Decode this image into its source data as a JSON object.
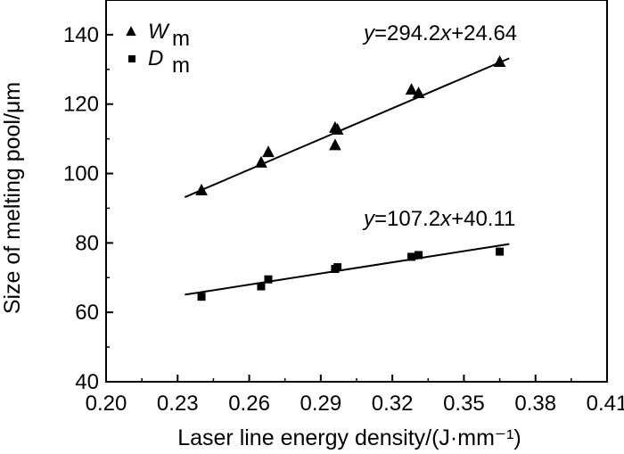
{
  "chart_data": {
    "type": "scatter",
    "xlabel": "Laser line energy density/(J·mm⁻¹)",
    "ylabel": "Size of melting pool/μm",
    "xlim": [
      0.2,
      0.41
    ],
    "ylim": [
      40,
      150
    ],
    "x_ticks": [
      "0.20",
      "0.23",
      "0.26",
      "0.29",
      "0.32",
      "0.35",
      "0.38",
      "0.41"
    ],
    "y_ticks": [
      "40",
      "60",
      "80",
      "100",
      "120",
      "140"
    ],
    "grid": false,
    "legend_position": "top-left",
    "series": [
      {
        "name": "W_m",
        "legend_main": "W",
        "legend_sub": "m",
        "marker": "triangle",
        "color": "#000000",
        "x": [
          0.24,
          0.265,
          0.268,
          0.296,
          0.296,
          0.297,
          0.328,
          0.331,
          0.365
        ],
        "y": [
          95,
          103,
          106,
          113,
          108,
          112.5,
          124,
          123,
          132
        ],
        "fit": {
          "slope": 294.2,
          "intercept": 24.64,
          "x_range": [
            0.233,
            0.369
          ],
          "equation_prefix": "y",
          "equation_rest": "=294.2",
          "equation_var": "x",
          "equation_suffix": "+24.64"
        }
      },
      {
        "name": "D_m",
        "legend_main": "D",
        "legend_sub": "m",
        "marker": "square",
        "color": "#000000",
        "x": [
          0.24,
          0.265,
          0.268,
          0.296,
          0.297,
          0.328,
          0.331,
          0.365
        ],
        "y": [
          64.5,
          67.5,
          69.5,
          72.5,
          73,
          76,
          76.5,
          77.5
        ],
        "fit": {
          "slope": 107.2,
          "intercept": 40.11,
          "x_range": [
            0.233,
            0.369
          ],
          "equation_prefix": "y",
          "equation_rest": "=107.2",
          "equation_var": "x",
          "equation_suffix": "+40.11"
        }
      }
    ]
  }
}
